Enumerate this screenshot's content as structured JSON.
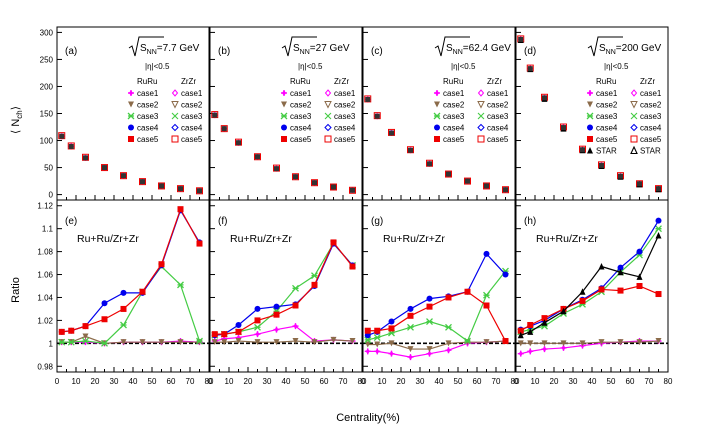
{
  "figure": {
    "top_ylabel": "⟨ N",
    "top_ylabel_sub": "ch",
    "top_ylabel_end": "⟩",
    "bottom_ylabel": "Ratio",
    "xlabel": "Centrality(%)",
    "eta_cut": "|η|<0.5",
    "ratio_label": "Ru+Ru/Zr+Zr",
    "col_ruru": "RuRu",
    "col_zrzr": "ZrZr",
    "sqrt_s": "S",
    "sqrt_sub": "NN",
    "x_ticks": [
      "0",
      "10",
      "20",
      "30",
      "40",
      "50",
      "60",
      "70",
      "80"
    ],
    "top_y_ticks": [
      "0",
      "50",
      "100",
      "150",
      "200",
      "250",
      "300"
    ],
    "bottom_y_ticks": [
      "0.98",
      "1",
      "1.02",
      "1.04",
      "1.06",
      "1.08",
      "1.1",
      "1.12"
    ],
    "xlim": [
      0,
      80
    ],
    "top_ylim": [
      -10,
      310
    ],
    "bottom_ylim": [
      0.975,
      1.125
    ]
  },
  "colors": {
    "case1": "#ff00ff",
    "case2": "#8b6b4a",
    "case3": "#44cc44",
    "case4": "#0000ee",
    "case5": "#ee0000",
    "STAR": "#000000"
  },
  "chart_data": [
    {
      "type": "scatter",
      "panel": "(a)",
      "energy": "=7.7 GeV",
      "legend": [
        "case1",
        "case2",
        "case3",
        "case4",
        "case5"
      ],
      "x": [
        2.5,
        7.5,
        15,
        25,
        35,
        45,
        55,
        65,
        75
      ],
      "series": [
        {
          "name": "case1",
          "values": [
            108,
            89,
            68,
            50,
            35,
            24,
            16,
            11,
            7
          ]
        },
        {
          "name": "case5",
          "values": [
            109,
            90,
            69,
            50,
            35,
            24,
            16,
            11,
            7
          ]
        }
      ]
    },
    {
      "type": "scatter",
      "panel": "(b)",
      "energy": "=27 GeV",
      "legend": [
        "case1",
        "case2",
        "case3",
        "case4",
        "case5"
      ],
      "x": [
        2.5,
        7.5,
        15,
        25,
        35,
        45,
        55,
        65,
        75
      ],
      "series": [
        {
          "name": "case1",
          "values": [
            147,
            122,
            96,
            70,
            48,
            33,
            22,
            14,
            8
          ]
        },
        {
          "name": "case5",
          "values": [
            148,
            122,
            97,
            70,
            49,
            33,
            22,
            14,
            8
          ]
        }
      ]
    },
    {
      "type": "scatter",
      "panel": "(c)",
      "energy": "=62.4 GeV",
      "legend": [
        "case1",
        "case2",
        "case3",
        "case4",
        "case5"
      ],
      "x": [
        2.5,
        7.5,
        15,
        25,
        35,
        45,
        55,
        65,
        75
      ],
      "series": [
        {
          "name": "case1",
          "values": [
            176,
            145,
            114,
            82,
            57,
            38,
            25,
            16,
            9
          ]
        },
        {
          "name": "case5",
          "values": [
            177,
            146,
            115,
            83,
            58,
            38,
            25,
            16,
            9
          ]
        }
      ]
    },
    {
      "type": "scatter",
      "panel": "(d)",
      "energy": "=200 GeV",
      "legend": [
        "case1",
        "case2",
        "case3",
        "case4",
        "case5",
        "STAR"
      ],
      "x": [
        2.5,
        7.5,
        15,
        25,
        35,
        45,
        55,
        65,
        75
      ],
      "series": [
        {
          "name": "case1",
          "values": [
            287,
            233,
            179,
            124,
            83,
            54,
            34,
            20,
            11
          ]
        },
        {
          "name": "case5",
          "values": [
            288,
            234,
            180,
            125,
            84,
            55,
            35,
            20,
            11
          ]
        },
        {
          "name": "STAR",
          "values": [
            286,
            232,
            177,
            122,
            82,
            53,
            33,
            19,
            10
          ]
        }
      ]
    },
    {
      "type": "line",
      "panel": "(e)",
      "x": [
        2.5,
        7.5,
        15,
        25,
        35,
        45,
        55,
        65,
        75
      ],
      "series": [
        {
          "name": "case1",
          "values": [
            1.001,
            1.001,
            1.001,
            1.0,
            1.001,
            1.001,
            1.001,
            1.002,
            1.001
          ]
        },
        {
          "name": "case2",
          "values": [
            1.001,
            1.001,
            1.006,
            1.0,
            1.001,
            1.001,
            1.001,
            1.001,
            1.001
          ]
        },
        {
          "name": "case3",
          "values": [
            1.001,
            1.001,
            1.002,
            1.0,
            1.016,
            1.045,
            1.067,
            1.051,
            1.002
          ]
        },
        {
          "name": "case4",
          "values": [
            1.01,
            1.011,
            1.015,
            1.035,
            1.044,
            1.044,
            1.068,
            1.116,
            1.088
          ]
        },
        {
          "name": "case5",
          "values": [
            1.01,
            1.011,
            1.015,
            1.021,
            1.03,
            1.045,
            1.069,
            1.117,
            1.087
          ]
        }
      ]
    },
    {
      "type": "line",
      "panel": "(f)",
      "x": [
        2.5,
        7.5,
        15,
        25,
        35,
        45,
        55,
        65,
        75
      ],
      "series": [
        {
          "name": "case1",
          "values": [
            1.002,
            1.004,
            1.005,
            1.008,
            1.012,
            1.015,
            1.002,
            1.003,
            1.002
          ]
        },
        {
          "name": "case2",
          "values": [
            1.001,
            1.001,
            1.002,
            1.001,
            1.001,
            1.002,
            1.001,
            1.003,
            1.002
          ]
        },
        {
          "name": "case3",
          "values": [
            1.007,
            1.008,
            1.01,
            1.014,
            1.028,
            1.048,
            1.059,
            1.087,
            1.068
          ]
        },
        {
          "name": "case4",
          "values": [
            1.007,
            1.008,
            1.016,
            1.03,
            1.032,
            1.034,
            1.05,
            1.087,
            1.068
          ]
        },
        {
          "name": "case5",
          "values": [
            1.008,
            1.008,
            1.01,
            1.02,
            1.025,
            1.033,
            1.051,
            1.088,
            1.067
          ]
        }
      ]
    },
    {
      "type": "line",
      "panel": "(g)",
      "x": [
        2.5,
        7.5,
        15,
        25,
        35,
        45,
        55,
        65,
        75
      ],
      "series": [
        {
          "name": "case1",
          "values": [
            0.993,
            0.993,
            0.991,
            0.988,
            0.991,
            0.994,
            1.0,
            1.001,
            1.002
          ]
        },
        {
          "name": "case2",
          "values": [
            0.999,
            0.999,
            1.0,
            0.995,
            0.995,
            1.0,
            1.001,
            1.001,
            1.002
          ]
        },
        {
          "name": "case3",
          "values": [
            1.003,
            1.005,
            1.009,
            1.014,
            1.019,
            1.014,
            1.002,
            1.042,
            1.063
          ]
        },
        {
          "name": "case4",
          "values": [
            1.007,
            1.01,
            1.019,
            1.03,
            1.039,
            1.041,
            1.045,
            1.078,
            1.06
          ]
        },
        {
          "name": "case5",
          "values": [
            1.011,
            1.011,
            1.013,
            1.024,
            1.032,
            1.04,
            1.045,
            1.033,
            1.002
          ]
        }
      ]
    },
    {
      "type": "line",
      "panel": "(h)",
      "x": [
        2.5,
        7.5,
        15,
        25,
        35,
        45,
        55,
        65,
        75
      ],
      "series": [
        {
          "name": "case1",
          "values": [
            0.991,
            0.993,
            0.995,
            0.996,
            0.998,
            1.0,
            1.001,
            1.002,
            1.002
          ]
        },
        {
          "name": "case2",
          "values": [
            1.0,
            1.0,
            1.0,
            1.0,
            1.0,
            1.001,
            1.001,
            1.001,
            1.002
          ]
        },
        {
          "name": "case3",
          "values": [
            1.01,
            1.012,
            1.015,
            1.026,
            1.034,
            1.045,
            1.062,
            1.077,
            1.1
          ]
        },
        {
          "name": "case4",
          "values": [
            1.012,
            1.015,
            1.02,
            1.03,
            1.038,
            1.048,
            1.066,
            1.08,
            1.107
          ]
        },
        {
          "name": "case5",
          "values": [
            1.011,
            1.016,
            1.022,
            1.03,
            1.037,
            1.047,
            1.046,
            1.05,
            1.043
          ]
        },
        {
          "name": "STAR",
          "values": [
            1.007,
            1.01,
            1.018,
            1.028,
            1.045,
            1.067,
            1.062,
            1.058,
            1.094
          ]
        }
      ]
    }
  ]
}
